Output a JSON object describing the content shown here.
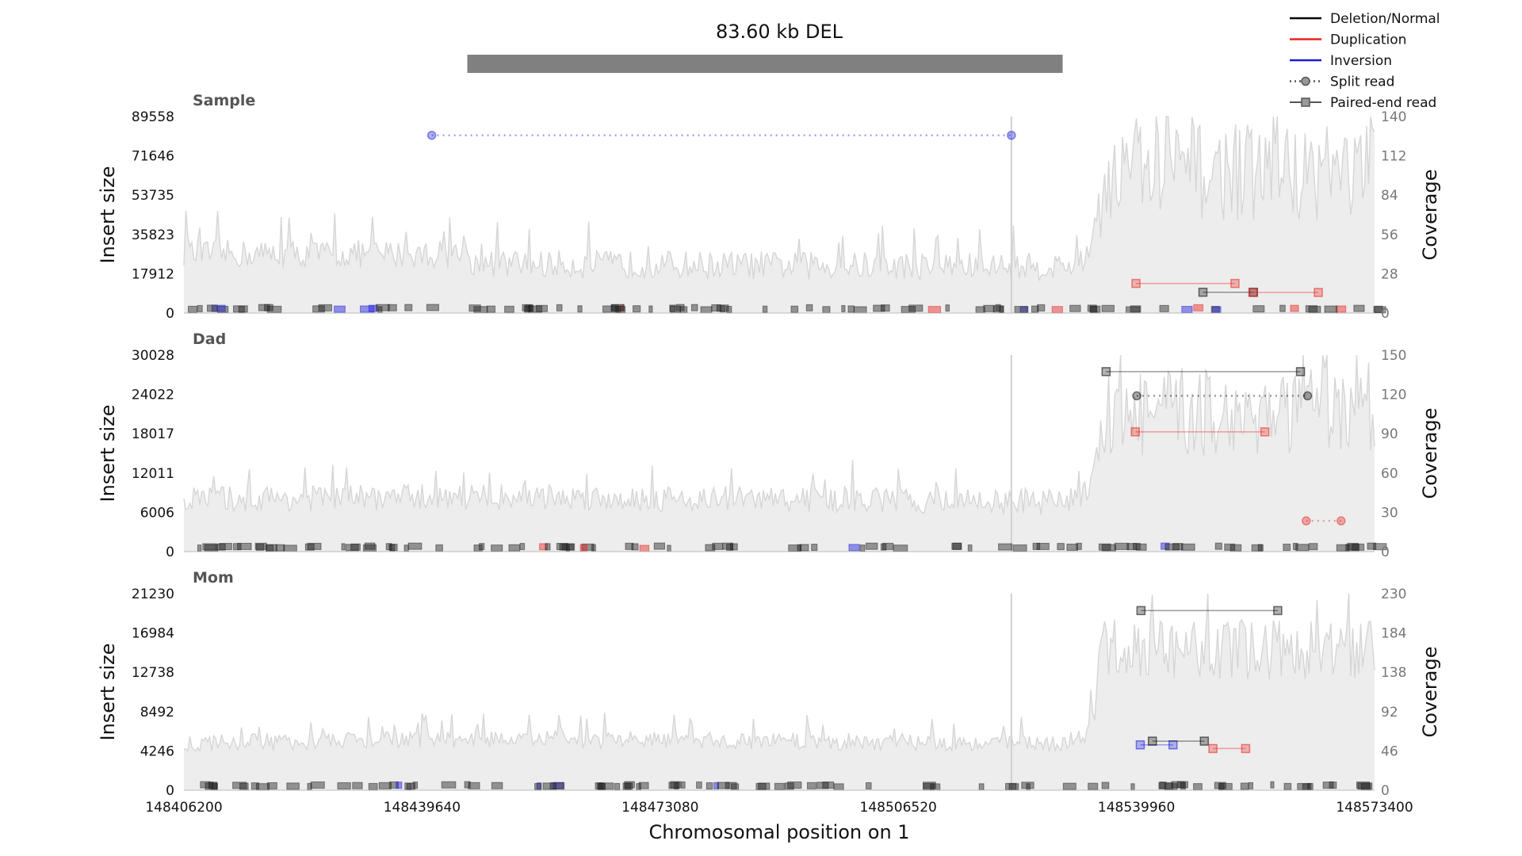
{
  "chart_data": {
    "type": "line",
    "title": "83.60 kb DEL",
    "xlabel": "Chromosomal position on 1",
    "xlim": [
      148406200,
      148573400
    ],
    "x_ticks": [
      "148406200",
      "148439640",
      "148473080",
      "148506520",
      "148539960",
      "148573400"
    ],
    "variant_region": [
      148446000,
      148529600
    ],
    "legend": {
      "placement": "top-right",
      "entries": [
        {
          "label": "Deletion/Normal",
          "style": "line",
          "color": "#000000"
        },
        {
          "label": "Duplication",
          "style": "line",
          "color": "#e8231f"
        },
        {
          "label": "Inversion",
          "style": "line",
          "color": "#1a1adb"
        },
        {
          "label": "Split read",
          "style": "dotted-circle",
          "color": "#555555"
        },
        {
          "label": "Paired-end read",
          "style": "solid-square",
          "color": "#555555"
        }
      ]
    },
    "panels": [
      {
        "name": "Sample",
        "ylabel_left": "Insert size",
        "ylabel_right": "Coverage",
        "ylim": [
          0,
          89558
        ],
        "yticks": [
          "0",
          "17912",
          "35823",
          "53735",
          "71646",
          "89558"
        ],
        "coverage_ylim": [
          0,
          140
        ],
        "coverage_ticks": [
          "0",
          "28",
          "56",
          "84",
          "112",
          "140"
        ],
        "coverage_profile": [
          [
            148406200,
            42
          ],
          [
            148446000,
            42
          ],
          [
            148447000,
            35
          ],
          [
            148529600,
            33
          ],
          [
            148533000,
            38
          ],
          [
            148535500,
            100
          ],
          [
            148573400,
            100
          ]
        ],
        "reads": [
          {
            "kind": "split",
            "type": "Inversion",
            "x1": 148441000,
            "x2": 148522400,
            "y": 81000
          },
          {
            "kind": "paired",
            "type": "Duplication",
            "x1": 148539900,
            "x2": 148553800,
            "y": 13500
          },
          {
            "kind": "paired",
            "type": "Deletion/Normal",
            "x1": 148549300,
            "x2": 148556400,
            "y": 9500
          },
          {
            "kind": "paired",
            "type": "Duplication",
            "x1": 148556300,
            "x2": 148565500,
            "y": 9400
          }
        ]
      },
      {
        "name": "Dad",
        "ylabel_left": "Insert size",
        "ylabel_right": "Coverage",
        "ylim": [
          0,
          30028
        ],
        "yticks": [
          "0",
          "6006",
          "12011",
          "18017",
          "24022",
          "30028"
        ],
        "coverage_ylim": [
          0,
          150
        ],
        "coverage_ticks": [
          "0",
          "30",
          "60",
          "90",
          "120",
          "150"
        ],
        "coverage_profile": [
          [
            148406200,
            40
          ],
          [
            148446000,
            42
          ],
          [
            148529600,
            38
          ],
          [
            148533000,
            45
          ],
          [
            148535500,
            105
          ],
          [
            148573400,
            105
          ]
        ],
        "reads": [
          {
            "kind": "paired",
            "type": "Deletion/Normal",
            "x1": 148535700,
            "x2": 148563000,
            "y": 27500
          },
          {
            "kind": "split",
            "type": "Deletion/Normal",
            "x1": 148540000,
            "x2": 148564000,
            "y": 23800
          },
          {
            "kind": "paired",
            "type": "Duplication",
            "x1": 148539800,
            "x2": 148558000,
            "y": 18300
          },
          {
            "kind": "split",
            "type": "Duplication",
            "x1": 148563800,
            "x2": 148568700,
            "y": 4700
          }
        ]
      },
      {
        "name": "Mom",
        "ylabel_left": "Insert size",
        "ylabel_right": "Coverage",
        "ylim": [
          0,
          21230
        ],
        "yticks": [
          "0",
          "4246",
          "8492",
          "12738",
          "16984",
          "21230"
        ],
        "coverage_ylim": [
          0,
          230
        ],
        "coverage_ticks": [
          "0",
          "46",
          "92",
          "138",
          "184",
          "230"
        ],
        "coverage_profile": [
          [
            148406200,
            55
          ],
          [
            148446000,
            60
          ],
          [
            148529600,
            55
          ],
          [
            148533000,
            65
          ],
          [
            148535500,
            165
          ],
          [
            148573400,
            165
          ]
        ],
        "reads": [
          {
            "kind": "paired",
            "type": "Deletion/Normal",
            "x1": 148540600,
            "x2": 148559800,
            "y": 19400
          },
          {
            "kind": "paired",
            "type": "Inversion",
            "x1": 148540500,
            "x2": 148545100,
            "y": 4900
          },
          {
            "kind": "paired",
            "type": "Deletion/Normal",
            "x1": 148542200,
            "x2": 148549500,
            "y": 5300
          },
          {
            "kind": "paired",
            "type": "Duplication",
            "x1": 148550700,
            "x2": 148555300,
            "y": 4500
          }
        ]
      }
    ]
  }
}
